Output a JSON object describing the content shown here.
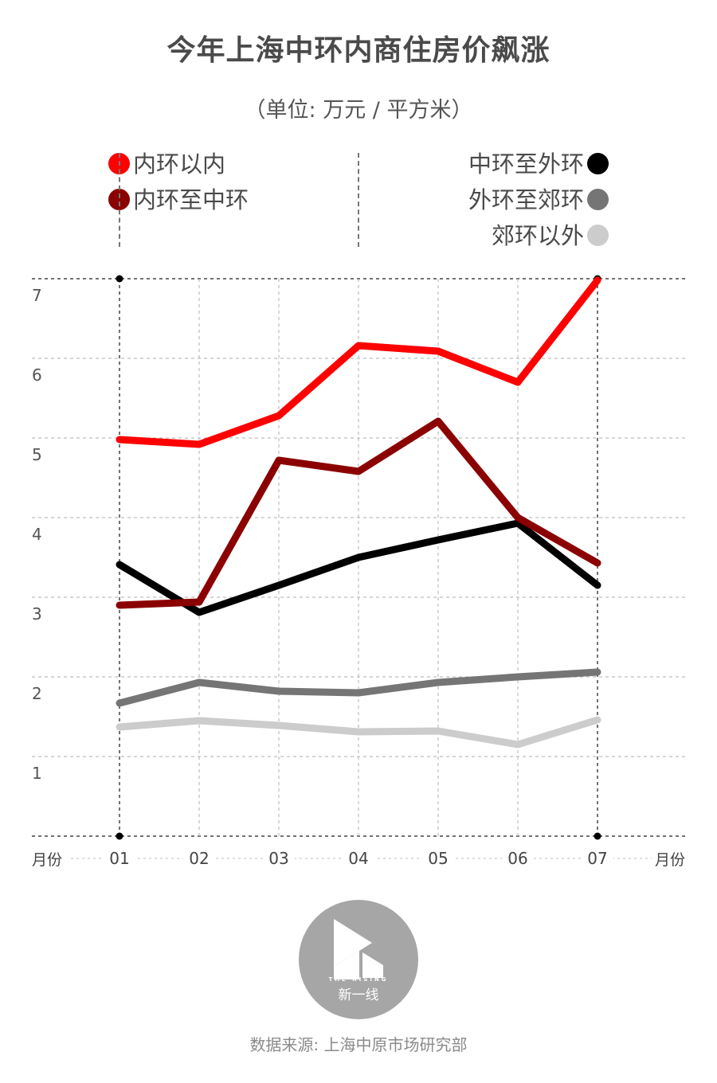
{
  "title": "今年上海中环内商住房价飙涨",
  "subtitle": "（单位: 万元 / 平方米）",
  "source": "数据来源: 上海中原市场研究部",
  "logo": {
    "tagline": "THE RISING",
    "name": "新一线"
  },
  "colors": {
    "inner_ring": "#ff0000",
    "inner_to_middle": "#8b0000",
    "middle_to_outer": "#000000",
    "outer_to_suburban": "#757575",
    "beyond_suburban": "#cccccc",
    "grid": "#bdbdbd",
    "axis": "#444444"
  },
  "legend": {
    "left": [
      {
        "label": "内环以内",
        "color_key": "inner_ring"
      },
      {
        "label": "内环至中环",
        "color_key": "inner_to_middle"
      }
    ],
    "right": [
      {
        "label": "中环至外环",
        "color_key": "middle_to_outer"
      },
      {
        "label": "外环至郊环",
        "color_key": "outer_to_suburban"
      },
      {
        "label": "郊环以外",
        "color_key": "beyond_suburban"
      }
    ]
  },
  "chart_data": {
    "type": "line",
    "title": "今年上海中环内商住房价飙涨",
    "ylabel": "万元/平方米",
    "xlabel": "月份",
    "xlabel_right": "月份",
    "categories": [
      "01",
      "02",
      "03",
      "04",
      "05",
      "06",
      "07"
    ],
    "ylim": [
      0,
      7
    ],
    "yticks": [
      1,
      2,
      3,
      4,
      5,
      6,
      7
    ],
    "grid": true,
    "series": [
      {
        "name": "内环以内",
        "color_key": "inner_ring",
        "values": [
          4.98,
          4.92,
          5.28,
          6.16,
          6.09,
          5.7,
          6.98
        ]
      },
      {
        "name": "内环至中环",
        "color_key": "inner_to_middle",
        "values": [
          2.9,
          2.94,
          4.72,
          4.58,
          5.21,
          4.0,
          3.43
        ]
      },
      {
        "name": "中环至外环",
        "color_key": "middle_to_outer",
        "values": [
          3.41,
          2.81,
          3.15,
          3.5,
          3.72,
          3.93,
          3.15
        ]
      },
      {
        "name": "外环至郊环",
        "color_key": "outer_to_suburban",
        "values": [
          1.67,
          1.93,
          1.82,
          1.8,
          1.93,
          2.0,
          2.06
        ]
      },
      {
        "name": "郊环以外",
        "color_key": "beyond_suburban",
        "values": [
          1.37,
          1.45,
          1.39,
          1.31,
          1.32,
          1.15,
          1.46
        ]
      }
    ]
  }
}
